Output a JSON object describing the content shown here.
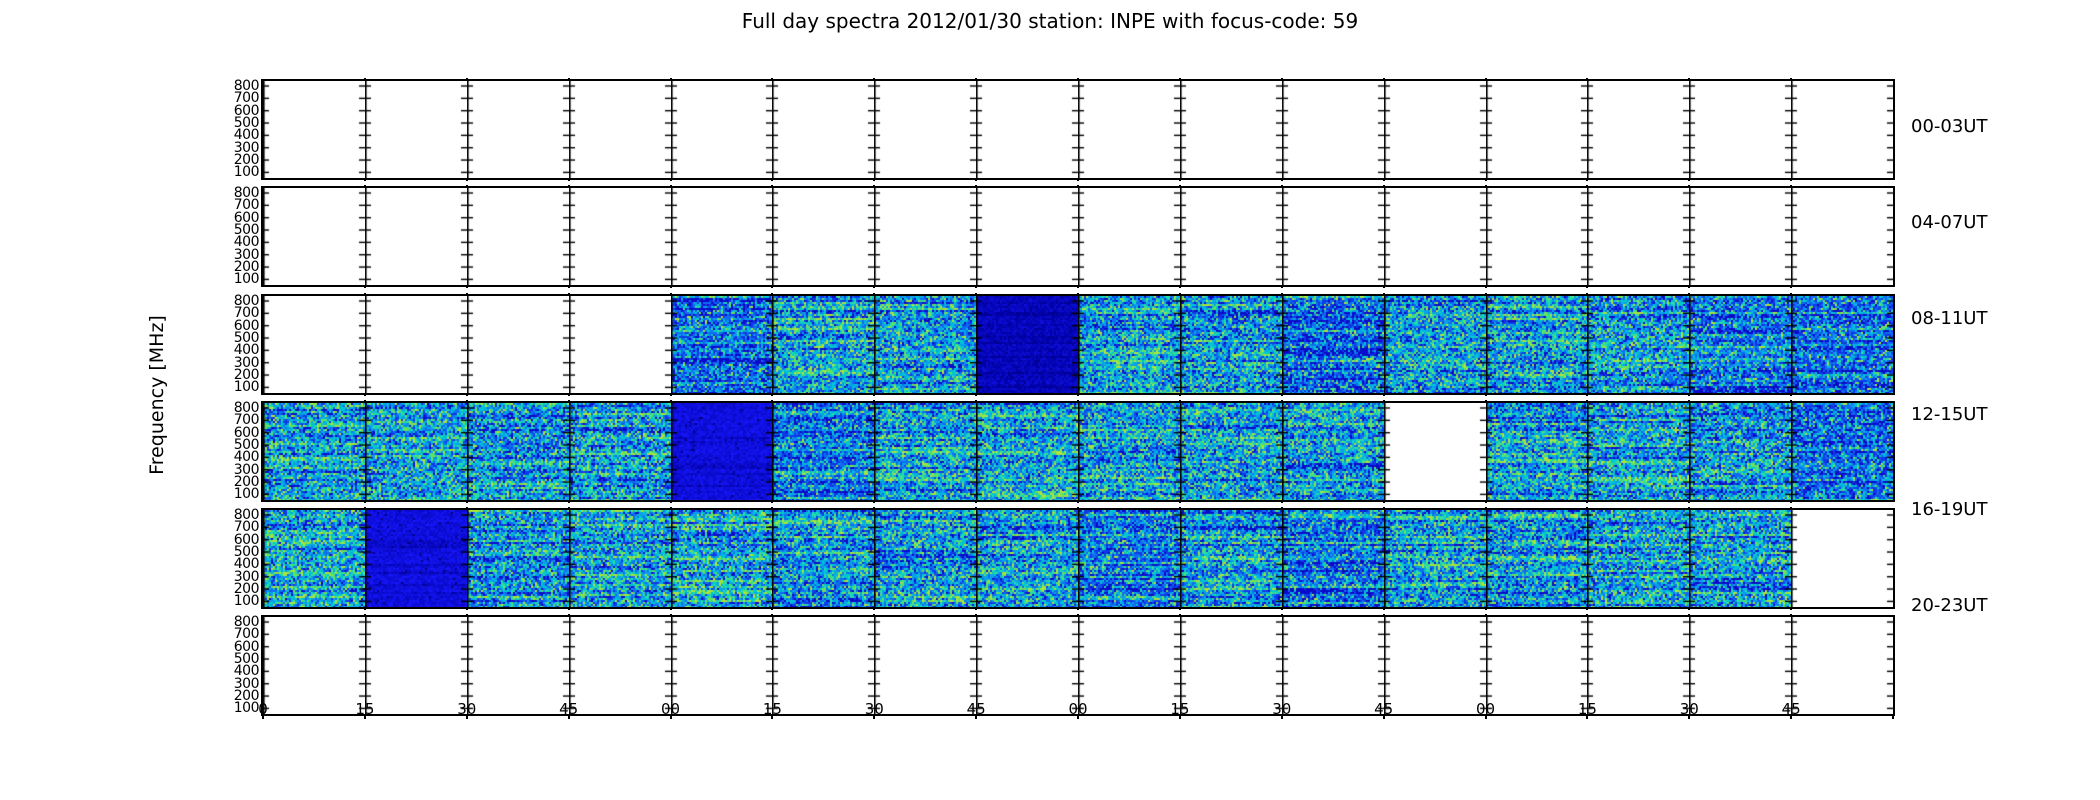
{
  "title": "Full day spectra 2012/01/30 station: INPE with focus-code: 59",
  "y_axis": {
    "label": "Frequency [MHz]",
    "tick_labels": [
      "800",
      "700",
      "600",
      "500",
      "400",
      "300",
      "200",
      "100"
    ]
  },
  "x_axis": {
    "tick_labels": [
      "0",
      "15",
      "30",
      "45",
      "00",
      "15",
      "30",
      "45",
      "00",
      "15",
      "30",
      "45",
      "00",
      "15",
      "30",
      "45"
    ]
  },
  "palette": {
    "background": "#ffffff",
    "frame": "#000000",
    "speckle": [
      "#0a0ac8",
      "#1038e6",
      "#0f6cf0",
      "#09a0ea",
      "#00c6d2",
      "#2cdca2",
      "#66e25c",
      "#ace43a"
    ],
    "quiet_blue": "#1010e0",
    "quiet_dark": "#0707be",
    "no_data": "#ffffff"
  },
  "chart_data": {
    "type": "heatmap",
    "colormap": "jet",
    "title": "Full day spectra 2012/01/30 station: INPE with focus-code: 59",
    "ylabel": "Frequency [MHz]",
    "ylim": [
      100,
      800
    ],
    "y_ticks": [
      800,
      700,
      600,
      500,
      400,
      300,
      200,
      100
    ],
    "x_tick_minute_labels": [
      "0",
      "15",
      "30",
      "45",
      "00",
      "15",
      "30",
      "45",
      "00",
      "15",
      "30",
      "45",
      "00",
      "15",
      "30",
      "45"
    ],
    "hours_per_panel": 4,
    "segment_minutes": 15,
    "grid": false,
    "legend": false,
    "panels": [
      {
        "label": "00-03UT",
        "segments_15min": [
          "no-data",
          "no-data",
          "no-data",
          "no-data",
          "no-data",
          "no-data",
          "no-data",
          "no-data",
          "no-data",
          "no-data",
          "no-data",
          "no-data",
          "no-data",
          "no-data",
          "no-data",
          "no-data"
        ]
      },
      {
        "label": "04-07UT",
        "segments_15min": [
          "no-data",
          "no-data",
          "no-data",
          "no-data",
          "no-data",
          "no-data",
          "no-data",
          "no-data",
          "no-data",
          "no-data",
          "no-data",
          "no-data",
          "no-data",
          "no-data",
          "no-data",
          "no-data"
        ]
      },
      {
        "label": "08-11UT",
        "segments_15min": [
          "no-data",
          "no-data",
          "no-data",
          "no-data",
          "noise-blue",
          "noise",
          "noise",
          "quiet-dark",
          "noise",
          "noise",
          "noise-blue",
          "noise",
          "noise",
          "noise",
          "noise-blue",
          "noise-blue"
        ]
      },
      {
        "label": "12-15UT",
        "segments_15min": [
          "noise",
          "noise",
          "noise",
          "noise",
          "quiet-blue",
          "noise-blue",
          "noise",
          "noise",
          "noise",
          "noise",
          "noise",
          "no-data",
          "noise",
          "noise",
          "noise",
          "noise-blue"
        ]
      },
      {
        "label": "16-19UT",
        "segments_15min": [
          "noise",
          "quiet-blue",
          "noise",
          "noise",
          "noise",
          "noise",
          "noise",
          "noise",
          "noise-blue",
          "noise",
          "noise-blue",
          "noise",
          "noise",
          "noise",
          "noise",
          "no-data"
        ]
      },
      {
        "label": "20-23UT",
        "segments_15min": [
          "no-data",
          "no-data",
          "no-data",
          "no-data",
          "no-data",
          "no-data",
          "no-data",
          "no-data",
          "no-data",
          "no-data",
          "no-data",
          "no-data",
          "no-data",
          "no-data",
          "no-data",
          "no-data"
        ]
      }
    ],
    "value_legend": {
      "no-data": "white, missing 15-min file",
      "noise": "broadband cyan-blue speckle spectrum",
      "noise-blue": "bluer broadband speckle spectrum",
      "quiet-blue": "nearly uniform royal blue (low activity)",
      "quiet-dark": "nearly uniform dark navy blue (very low activity)"
    }
  }
}
